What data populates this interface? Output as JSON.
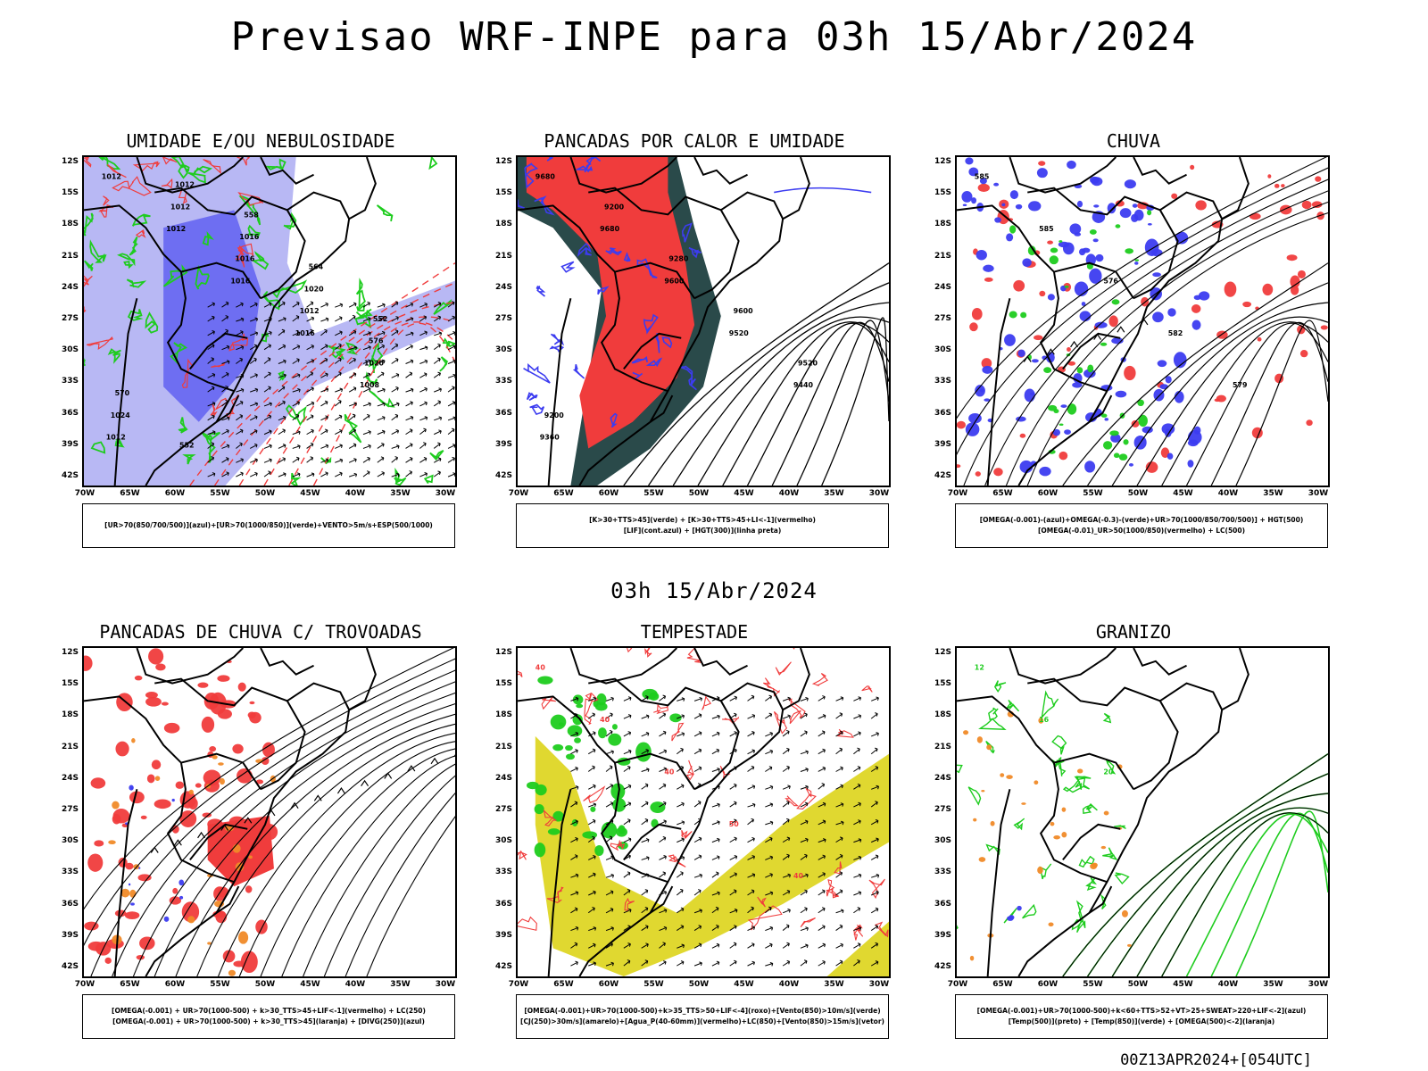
{
  "title": "Previsao WRF-INPE  para 03h 15/Abr/2024",
  "mid_date": "03h 15/Abr/2024",
  "footer": "00Z13APR2024+[054UTC]",
  "lat_labels": [
    "12S",
    "15S",
    "18S",
    "21S",
    "24S",
    "27S",
    "30S",
    "33S",
    "36S",
    "39S",
    "42S"
  ],
  "lon_labels": [
    "70W",
    "65W",
    "60W",
    "55W",
    "50W",
    "45W",
    "40W",
    "35W",
    "30W"
  ],
  "panels": [
    {
      "title": "UMIDADE E/OU NEBULOSIDADE",
      "legend": [
        "[UR>70(850/700/500)](azul)+[UR>70(1000/850)](verde)+VENTO>5m/s+ESP(500/1000)"
      ],
      "contour_labels": [
        "1012",
        "1012",
        "1016",
        "1016",
        "1008",
        "1012",
        "1012",
        "1016",
        "1012",
        "1020",
        "1024",
        "1012",
        "1016",
        "1020",
        "576",
        "570",
        "552",
        "558",
        "564",
        "552"
      ]
    },
    {
      "title": "PANCADAS POR CALOR E UMIDADE",
      "legend": [
        "[K>30+TTS>45](verde) + [K>30+TTS>45+LI<-1](vermelho)",
        "[LIF](cont.azul) + [HGT(300)](linha preta)"
      ],
      "contour_labels": [
        "9680",
        "9680",
        "9600",
        "9520",
        "9440",
        "9360",
        "9200",
        "9280",
        "9600",
        "9520",
        "9200"
      ]
    },
    {
      "title": "CHUVA",
      "legend": [
        "[OMEGA(-0.001)-(azul)+OMEGA(-0.3)-(verde)+UR>70(1000/850/700/500)] + HGT(500)",
        "[OMEGA(-0.01)_UR>50(1000/850)(vermelho) + LC(500)"
      ],
      "contour_labels": [
        "585",
        "585",
        "576",
        "582",
        "579"
      ]
    },
    {
      "title": "PANCADAS DE CHUVA C/ TROVOADAS",
      "legend": [
        "[OMEGA(-0.001) + UR>70(1000-500) + k>30_TTS>45+LIF<-1](vermelho) + LC(250)",
        "[OMEGA(-0.001) + UR>70(1000-500) + k>30_TTS>45](laranja) + [DIVG(250)](azul)"
      ],
      "contour_labels": []
    },
    {
      "title": "TEMPESTADE",
      "legend": [
        "[OMEGA(-0.001)+UR>70(1000-500)+k>35_TTS>50+LIF<-4](roxo)+[Vento(850)>10m/s](verde)",
        "[CJ(250)>30m/s](amarelo)+[Agua_P(40-60mm)](vermelho)+LC(850)+[Vento(850)>15m/s](vetor)"
      ],
      "contour_labels": [
        "40",
        "40",
        "40",
        "50",
        "40"
      ]
    },
    {
      "title": "GRANIZO",
      "legend": [
        "[OMEGA(-0.001)+UR>70(1000-500)+k<60+TTS>52+VT>25+SWEAT>220+LIF<-2](azul)",
        "[Temp(500)](preto) + [Temp(850)](verde) + [OMEGA(500)<-2](laranja)"
      ],
      "contour_labels": [
        "12",
        "16",
        "20"
      ]
    }
  ],
  "colors": {
    "red": "#f03c3c",
    "green": "#1ecc1e",
    "blue": "#3c3cf0",
    "lightblue": "#a0a0f0",
    "darkgreen": "#2a4a4a",
    "yellow": "#e0d830",
    "orange": "#f08a28"
  }
}
